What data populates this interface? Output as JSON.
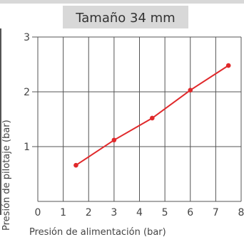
{
  "chart_data": {
    "type": "line",
    "title": "Tamaño 34 mm",
    "xlabel": "Presión de alimentación (bar)",
    "ylabel": "Presión de pilotaje (bar)",
    "xlim": [
      0,
      8
    ],
    "ylim": [
      0,
      3
    ],
    "x_ticks": [
      "0",
      "1",
      "2",
      "3",
      "4",
      "5",
      "6",
      "7",
      "8"
    ],
    "y_ticks": [
      "1",
      "2",
      "3"
    ],
    "grid": true,
    "series": [
      {
        "x": [
          1.5,
          3.0,
          4.5,
          6.0,
          7.5
        ],
        "y": [
          0.66,
          1.12,
          1.52,
          2.03,
          2.48
        ]
      }
    ],
    "colors": {
      "series": "#e0292b",
      "grid": "#555555",
      "title_band": "#d8d8d8",
      "top_border": "#d8d8d8"
    }
  }
}
